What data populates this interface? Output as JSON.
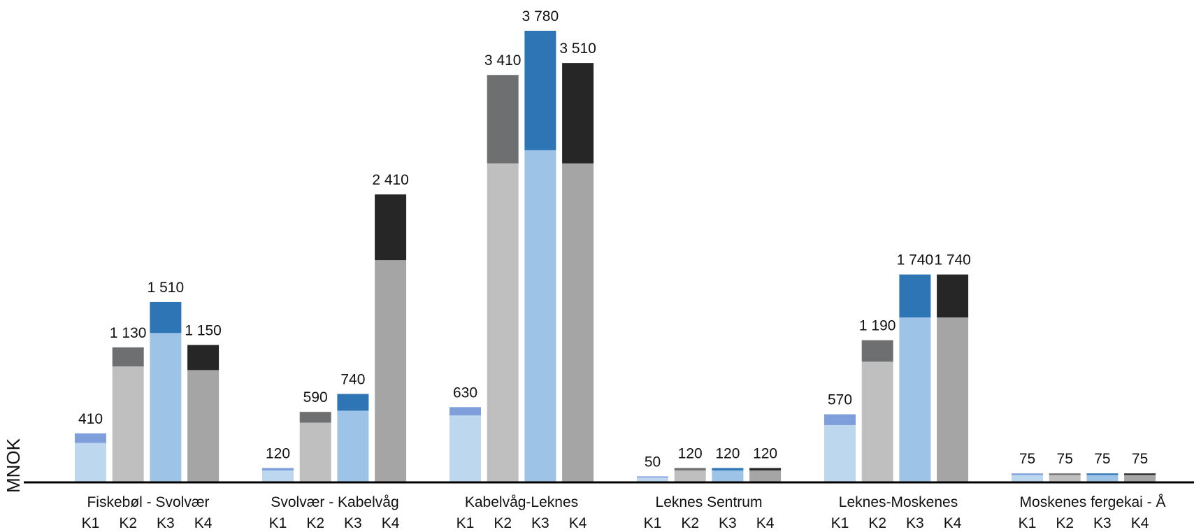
{
  "chart_data": {
    "type": "bar",
    "ylabel": "MNOK",
    "ylim": [
      0,
      3780
    ],
    "series_names": [
      "K1",
      "K2",
      "K3",
      "K4"
    ],
    "groups": [
      {
        "name": "Fiskebøl - Svolvær",
        "bars": [
          {
            "label": "K1",
            "total": 410,
            "total_label": "410",
            "base": 330
          },
          {
            "label": "K2",
            "total": 1130,
            "total_label": "1 130",
            "base": 970
          },
          {
            "label": "K3",
            "total": 1510,
            "total_label": "1 510",
            "base": 1250
          },
          {
            "label": "K4",
            "total": 1150,
            "total_label": "1 150",
            "base": 940
          }
        ]
      },
      {
        "name": "Svolvær - Kabelvåg",
        "bars": [
          {
            "label": "K1",
            "total": 120,
            "total_label": "120",
            "base": 100
          },
          {
            "label": "K2",
            "total": 590,
            "total_label": "590",
            "base": 500
          },
          {
            "label": "K3",
            "total": 740,
            "total_label": "740",
            "base": 600
          },
          {
            "label": "K4",
            "total": 2410,
            "total_label": "2 410",
            "base": 1860
          }
        ]
      },
      {
        "name": "Kabelvåg-Leknes",
        "bars": [
          {
            "label": "K1",
            "total": 630,
            "total_label": "630",
            "base": 560
          },
          {
            "label": "K2",
            "total": 3410,
            "total_label": "3 410",
            "base": 2670
          },
          {
            "label": "K3",
            "total": 3780,
            "total_label": "3 780",
            "base": 2780
          },
          {
            "label": "K4",
            "total": 3510,
            "total_label": "3 510",
            "base": 2670
          }
        ]
      },
      {
        "name": "Leknes Sentrum",
        "bars": [
          {
            "label": "K1",
            "total": 50,
            "total_label": "50",
            "base": 40
          },
          {
            "label": "K2",
            "total": 120,
            "total_label": "120",
            "base": 100
          },
          {
            "label": "K3",
            "total": 120,
            "total_label": "120",
            "base": 100
          },
          {
            "label": "K4",
            "total": 120,
            "total_label": "120",
            "base": 100
          }
        ]
      },
      {
        "name": "Leknes-Moskenes",
        "bars": [
          {
            "label": "K1",
            "total": 570,
            "total_label": "570",
            "base": 480
          },
          {
            "label": "K2",
            "total": 1190,
            "total_label": "1 190",
            "base": 1010
          },
          {
            "label": "K3",
            "total": 1740,
            "total_label": "1 740",
            "base": 1380
          },
          {
            "label": "K4",
            "total": 1740,
            "total_label": "1 740",
            "base": 1380
          }
        ]
      },
      {
        "name": "Moskenes fergekai - Å",
        "bars": [
          {
            "label": "K1",
            "total": 75,
            "total_label": "75",
            "base": 62
          },
          {
            "label": "K2",
            "total": 75,
            "total_label": "75",
            "base": 62
          },
          {
            "label": "K3",
            "total": 75,
            "total_label": "75",
            "base": 62
          },
          {
            "label": "K4",
            "total": 75,
            "total_label": "75",
            "base": 62
          }
        ]
      }
    ],
    "colors": {
      "K1": {
        "base": "#bdd7ee",
        "top": "#7f9fdc"
      },
      "K2": {
        "base": "#bfbfbf",
        "top": "#6d6f71"
      },
      "K3": {
        "base": "#9dc3e6",
        "top": "#2e75b6"
      },
      "K4": {
        "base": "#a5a5a5",
        "top": "#262626"
      }
    },
    "grid": false,
    "legend": "none"
  }
}
